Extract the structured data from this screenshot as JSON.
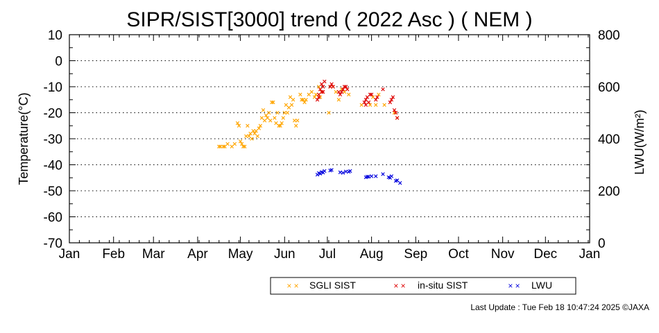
{
  "chart_data": {
    "type": "scatter",
    "title": "SIPR/SIST[3000] trend ( 2022 Asc ) ( NEM )",
    "ylabel": "Temperature(°C)",
    "y2label": "LWU(W/m²)",
    "x_ticks": [
      "Jan",
      "Feb",
      "Mar",
      "Apr",
      "May",
      "Jun",
      "Jul",
      "Aug",
      "Sep",
      "Oct",
      "Nov",
      "Dec",
      "Jan"
    ],
    "x_tick_days": [
      0,
      31,
      59,
      90,
      120,
      151,
      181,
      212,
      243,
      273,
      304,
      334,
      365
    ],
    "xlim_days": [
      0,
      365
    ],
    "ylim": [
      -70,
      10
    ],
    "y_ticks": [
      10,
      0,
      -10,
      -20,
      -30,
      -40,
      -50,
      -60,
      -70
    ],
    "y2lim": [
      0,
      800
    ],
    "y2_ticks": [
      800,
      600,
      400,
      200,
      0
    ],
    "grid": "horizontal dotted",
    "legend_position": "bottom-right",
    "colors": {
      "SGLI SIST": "#ffa500",
      "in-situ SIST": "#dd0000",
      "LWU": "#0000dd"
    },
    "series": [
      {
        "name": "SGLI SIST",
        "axis": "left",
        "x": [
          105,
          106,
          108,
          109,
          111,
          114,
          116,
          118,
          119,
          120,
          121,
          122,
          123,
          124,
          125,
          126,
          127,
          128,
          129,
          130,
          131,
          132,
          133,
          134,
          135,
          136,
          137,
          138,
          139,
          140,
          141,
          142,
          143,
          144,
          145,
          146,
          147,
          148,
          149,
          150,
          151,
          152,
          153,
          154,
          155,
          156,
          157,
          158,
          159,
          160,
          162,
          163,
          164,
          165,
          166,
          168,
          170,
          172,
          173,
          175,
          176,
          177,
          182,
          183,
          185,
          187,
          189,
          191,
          193,
          196,
          205,
          211,
          213,
          215,
          217,
          221,
          228,
          230
        ],
        "y": [
          -33,
          -33,
          -33,
          -33,
          -32,
          -33,
          -32,
          -24,
          -25,
          -31,
          -32,
          -33,
          -33,
          -29,
          -25,
          -29,
          -28,
          -30,
          -27,
          -28,
          -27,
          -29,
          -26,
          -25,
          -22,
          -19,
          -23,
          -21,
          -22,
          -20,
          -23,
          -16,
          -16,
          -22,
          -24,
          -20,
          -25,
          -25,
          -24,
          -22,
          -20,
          -17,
          -20,
          -18,
          -14,
          -17,
          -15,
          -23,
          -25,
          -23,
          -13,
          -15,
          -15,
          -16,
          -15,
          -13,
          -12,
          -14,
          -13,
          -10,
          -14,
          -12,
          -20,
          -10,
          -10,
          -12,
          -15,
          -11,
          -12,
          -13,
          -17,
          -17,
          -14,
          -17,
          -13,
          -17,
          -20,
          -22
        ]
      },
      {
        "name": "in-situ SIST",
        "axis": "left",
        "x": [
          174,
          175,
          175,
          176,
          177,
          177,
          178,
          178,
          179,
          183,
          184,
          185,
          189,
          190,
          191,
          192,
          193,
          194,
          195,
          207,
          208,
          208,
          209,
          210,
          211,
          212,
          215,
          216,
          220,
          225,
          226,
          227,
          228,
          229,
          230
        ],
        "y": [
          -15,
          -13,
          -14,
          -11,
          -12,
          -9,
          -10,
          -12,
          -8,
          -10,
          -9,
          -10,
          -12,
          -13,
          -12,
          -11,
          -10,
          -10,
          -11,
          -16,
          -15,
          -17,
          -14,
          -16,
          -13,
          -13,
          -15,
          -14,
          -11,
          -16,
          -15,
          -14,
          -19,
          -20,
          -22
        ]
      },
      {
        "name": "LWU",
        "axis": "right",
        "x": [
          174,
          175,
          176,
          177,
          178,
          179,
          183,
          184,
          190,
          192,
          194,
          196,
          197,
          208,
          209,
          210,
          212,
          215,
          220,
          224,
          225,
          226,
          229,
          230,
          232
        ],
        "y": [
          262,
          268,
          266,
          272,
          270,
          276,
          278,
          280,
          271,
          269,
          274,
          273,
          276,
          252,
          254,
          254,
          256,
          256,
          264,
          252,
          250,
          256,
          238,
          240,
          230
        ]
      }
    ]
  },
  "legend": {
    "items": [
      {
        "label": "SGLI SIST"
      },
      {
        "label": "in-situ SIST"
      },
      {
        "label": "LWU"
      }
    ]
  },
  "footer": {
    "last_update": "Last Update : Tue Feb 18 10:47:24 2025  ©JAXA"
  }
}
